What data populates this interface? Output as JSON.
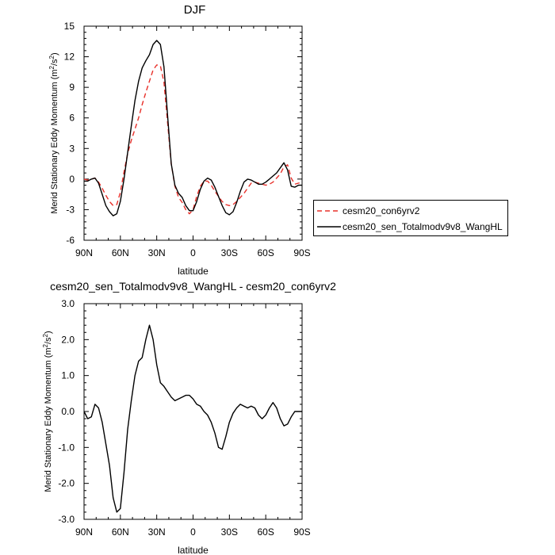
{
  "chart_data": [
    {
      "type": "line",
      "title": "DJF",
      "xlabel": "latitude",
      "ylabel_main": "Merid Stationary Eddy Momentum (m",
      "ylabel_unit_sup1": "2",
      "ylabel_unit_mid": "/s",
      "ylabel_unit_sup2": "2",
      "ylabel_unit_end": ")",
      "xlim": [
        90,
        -90
      ],
      "ylim": [
        -6,
        15
      ],
      "xticks": [
        {
          "value": 90,
          "label": "90N"
        },
        {
          "value": 60,
          "label": "60N"
        },
        {
          "value": 30,
          "label": "30N"
        },
        {
          "value": 0,
          "label": "0"
        },
        {
          "value": -30,
          "label": "30S"
        },
        {
          "value": -60,
          "label": "60S"
        },
        {
          "value": -90,
          "label": "90S"
        }
      ],
      "yticks": [
        {
          "value": -6,
          "label": "-6"
        },
        {
          "value": -3,
          "label": "-3"
        },
        {
          "value": 0,
          "label": "0"
        },
        {
          "value": 3,
          "label": "3"
        },
        {
          "value": 6,
          "label": "6"
        },
        {
          "value": 9,
          "label": "9"
        },
        {
          "value": 12,
          "label": "12"
        },
        {
          "value": 15,
          "label": "15"
        }
      ],
      "legend_position": "right",
      "series": [
        {
          "name": "cesm20_con6yrv2",
          "color": "#e8302a",
          "dash": "dashed",
          "x": [
            90,
            87,
            84,
            81,
            78,
            75,
            72,
            69,
            66,
            63,
            60,
            57,
            54,
            51,
            48,
            45,
            42,
            39,
            36,
            33,
            30,
            27,
            24,
            21,
            18,
            15,
            12,
            9,
            6,
            3,
            0,
            -3,
            -6,
            -9,
            -12,
            -15,
            -18,
            -21,
            -24,
            -27,
            -30,
            -33,
            -36,
            -39,
            -42,
            -45,
            -48,
            -51,
            -54,
            -57,
            -60,
            -63,
            -66,
            -69,
            -72,
            -75,
            -78,
            -81,
            -84,
            -87,
            -90
          ],
          "y": [
            0.0,
            -0.1,
            0.0,
            0.1,
            -0.3,
            -0.9,
            -1.6,
            -2.2,
            -2.6,
            -2.5,
            -1.3,
            0.7,
            2.5,
            3.8,
            4.9,
            6.0,
            7.3,
            8.5,
            9.6,
            10.7,
            11.2,
            11.1,
            9.5,
            5.5,
            1.5,
            -0.7,
            -1.8,
            -2.3,
            -3.0,
            -3.4,
            -3.0,
            -1.7,
            -0.7,
            -0.2,
            -0.2,
            -0.6,
            -1.2,
            -1.7,
            -2.2,
            -2.5,
            -2.6,
            -2.5,
            -2.2,
            -1.8,
            -1.4,
            -0.9,
            -0.4,
            -0.3,
            -0.4,
            -0.5,
            -0.6,
            -0.5,
            -0.3,
            0.1,
            0.5,
            1.2,
            1.4,
            0.1,
            -0.5,
            -0.4,
            -0.3
          ]
        },
        {
          "name": "cesm20_sen_Totalmodv9v8_WangHL",
          "color": "#000000",
          "dash": "solid",
          "x": [
            90,
            87,
            84,
            81,
            78,
            75,
            72,
            69,
            66,
            63,
            60,
            57,
            54,
            51,
            48,
            45,
            42,
            39,
            36,
            33,
            30,
            27,
            24,
            21,
            18,
            15,
            12,
            9,
            6,
            3,
            0,
            -3,
            -6,
            -9,
            -12,
            -15,
            -18,
            -21,
            -24,
            -27,
            -30,
            -33,
            -36,
            -39,
            -42,
            -45,
            -48,
            -51,
            -54,
            -57,
            -60,
            -63,
            -66,
            -69,
            -72,
            -75,
            -78,
            -81,
            -84,
            -87,
            -90
          ],
          "y": [
            -0.2,
            -0.2,
            0.0,
            0.1,
            -0.4,
            -1.5,
            -2.6,
            -3.2,
            -3.6,
            -3.4,
            -2.2,
            0.0,
            2.6,
            5.2,
            7.7,
            9.6,
            10.9,
            11.6,
            12.2,
            13.2,
            13.6,
            13.2,
            11.0,
            6.2,
            1.5,
            -0.6,
            -1.4,
            -1.8,
            -2.6,
            -3.1,
            -3.1,
            -2.2,
            -1.0,
            -0.2,
            0.1,
            -0.1,
            -0.8,
            -1.7,
            -2.6,
            -3.3,
            -3.5,
            -3.2,
            -2.3,
            -1.2,
            -0.3,
            0.0,
            -0.1,
            -0.3,
            -0.5,
            -0.5,
            -0.3,
            0.0,
            0.3,
            0.6,
            1.1,
            1.6,
            0.9,
            -0.7,
            -0.8,
            -0.6,
            -0.6
          ]
        }
      ]
    },
    {
      "type": "line",
      "title": "cesm20_sen_Totalmodv9v8_WangHL - cesm20_con6yrv2",
      "xlabel": "latitude",
      "ylabel_main": "Merid Stationary Eddy Momentum (m",
      "ylabel_unit_sup1": "2",
      "ylabel_unit_mid": "/s",
      "ylabel_unit_sup2": "2",
      "ylabel_unit_end": ")",
      "xlim": [
        90,
        -90
      ],
      "ylim": [
        -3,
        3
      ],
      "xticks": [
        {
          "value": 90,
          "label": "90N"
        },
        {
          "value": 60,
          "label": "60N"
        },
        {
          "value": 30,
          "label": "30N"
        },
        {
          "value": 0,
          "label": "0"
        },
        {
          "value": -30,
          "label": "30S"
        },
        {
          "value": -60,
          "label": "60S"
        },
        {
          "value": -90,
          "label": "90S"
        }
      ],
      "yticks": [
        {
          "value": -3,
          "label": "-3.0"
        },
        {
          "value": -2,
          "label": "-2.0"
        },
        {
          "value": -1,
          "label": "-1.0"
        },
        {
          "value": 0,
          "label": "0.0"
        },
        {
          "value": 1,
          "label": "1.0"
        },
        {
          "value": 2,
          "label": "2.0"
        },
        {
          "value": 3,
          "label": "3.0"
        }
      ],
      "series": [
        {
          "color": "#000000",
          "dash": "solid",
          "x": [
            90,
            87,
            84,
            81,
            78,
            75,
            72,
            69,
            66,
            63,
            60,
            57,
            54,
            51,
            48,
            45,
            42,
            39,
            36,
            33,
            30,
            27,
            24,
            21,
            18,
            15,
            12,
            9,
            6,
            3,
            0,
            -3,
            -6,
            -9,
            -12,
            -15,
            -18,
            -21,
            -24,
            -27,
            -30,
            -33,
            -36,
            -39,
            -42,
            -45,
            -48,
            -51,
            -54,
            -57,
            -60,
            -63,
            -66,
            -69,
            -72,
            -75,
            -78,
            -81,
            -84,
            -87,
            -90
          ],
          "y": [
            0.0,
            -0.2,
            -0.15,
            0.2,
            0.1,
            -0.3,
            -0.9,
            -1.5,
            -2.4,
            -2.8,
            -2.7,
            -1.7,
            -0.5,
            0.3,
            1.0,
            1.4,
            1.5,
            2.0,
            2.4,
            2.0,
            1.3,
            0.8,
            0.7,
            0.55,
            0.4,
            0.3,
            0.35,
            0.4,
            0.45,
            0.45,
            0.35,
            0.2,
            0.15,
            0.0,
            -0.1,
            -0.3,
            -0.6,
            -1.0,
            -1.05,
            -0.7,
            -0.3,
            -0.05,
            0.1,
            0.2,
            0.15,
            0.1,
            0.15,
            0.1,
            -0.1,
            -0.2,
            -0.1,
            0.1,
            0.25,
            0.1,
            -0.2,
            -0.4,
            -0.35,
            -0.15,
            0.0,
            0.0,
            0.0
          ]
        }
      ]
    }
  ]
}
